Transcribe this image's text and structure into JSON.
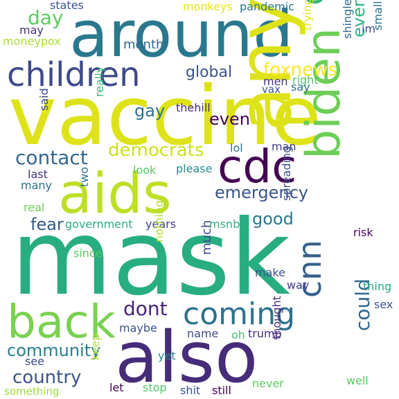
{
  "words": {
    "vaccine": {
      "text": "vaccine",
      "color": "#dde318"
    },
    "mask": {
      "text": "mask",
      "color": "#27ad81"
    },
    "around": {
      "text": "around",
      "color": "#2a788e"
    },
    "anyone": {
      "text": "anyone",
      "color": "#dde318"
    },
    "also": {
      "text": "also",
      "color": "#472c7a"
    },
    "aids": {
      "text": "aids",
      "color": "#bddf26"
    },
    "children": {
      "text": "children",
      "color": "#3e4a89"
    },
    "biden": {
      "text": "biden",
      "color": "#6ece58"
    },
    "back": {
      "text": "back",
      "color": "#7ad151"
    },
    "cdc": {
      "text": "cdc",
      "color": "#440154"
    },
    "come": {
      "text": "come",
      "color": "#35b779"
    },
    "coming": {
      "text": "coming",
      "color": "#2c718e"
    },
    "cnn": {
      "text": "cnn",
      "color": "#35608d"
    },
    "democrats": {
      "text": "democrats",
      "color": "#cde11d"
    },
    "contact": {
      "text": "contact",
      "color": "#31688e"
    },
    "country": {
      "text": "country",
      "color": "#3b528b"
    },
    "community": {
      "text": "community",
      "color": "#277f8e"
    },
    "emergency": {
      "text": "emergency",
      "color": "#3a548c"
    },
    "dont": {
      "text": "dont",
      "color": "#482475"
    },
    "could": {
      "text": "could",
      "color": "#31688e"
    },
    "day": {
      "text": "day",
      "color": "#5ec962"
    },
    "foxnews": {
      "text": "foxnews",
      "color": "#fde725"
    },
    "global": {
      "text": "global",
      "color": "#3b528b"
    },
    "everyone": {
      "text": "everyone",
      "color": "#2fb47c"
    },
    "gay": {
      "text": "gay",
      "color": "#2c718e"
    },
    "even": {
      "text": "even",
      "color": "#440154"
    },
    "fear": {
      "text": "fear",
      "color": "#38598c"
    },
    "good": {
      "text": "good",
      "color": "#2a788e"
    },
    "month": {
      "text": "month",
      "color": "#33638d"
    },
    "may": {
      "text": "may",
      "color": "#472f7d"
    },
    "moneypox": {
      "text": "moneypox",
      "color": "#addc30"
    },
    "states": {
      "text": "states",
      "color": "#3b528b"
    },
    "monkeys": {
      "text": "monkeys",
      "color": "#e5e419"
    },
    "pandemic": {
      "text": "pandemic",
      "color": "#2a788e"
    },
    "im": {
      "text": "im",
      "color": "#3e4a89"
    },
    "shingles": {
      "text": "shingles",
      "color": "#31688e"
    },
    "smallpox": {
      "text": "smallpox",
      "color": "#2d708e"
    },
    "trying": {
      "text": "trying",
      "color": "#e2e418"
    },
    "men": {
      "text": "men",
      "color": "#463480"
    },
    "right": {
      "text": "right",
      "color": "#52c569"
    },
    "vax": {
      "text": "vax",
      "color": "#3b528b"
    },
    "say": {
      "text": "say",
      "color": "#2c718e"
    },
    "thehill": {
      "text": "thehill",
      "color": "#472c7a"
    },
    "said": {
      "text": "said",
      "color": "#3e4a89"
    },
    "really": {
      "text": "really",
      "color": "#35b779"
    },
    "lol": {
      "text": "lol",
      "color": "#2c718e"
    },
    "man": {
      "text": "man",
      "color": "#433e85"
    },
    "last": {
      "text": "last",
      "color": "#46327e"
    },
    "look": {
      "text": "look",
      "color": "#56c667"
    },
    "please": {
      "text": "please",
      "color": "#228c8d"
    },
    "many": {
      "text": "many",
      "color": "#2c718e"
    },
    "two": {
      "text": "two",
      "color": "#2a768e"
    },
    "real": {
      "text": "real",
      "color": "#6ece58"
    },
    "government": {
      "text": "government",
      "color": "#27ad81"
    },
    "years": {
      "text": "years",
      "color": "#414487"
    },
    "msnbc": {
      "text": "msnbc",
      "color": "#2fb47c"
    },
    "spreading": {
      "text": "spreading",
      "color": "#3b528b"
    },
    "risk": {
      "text": "risk",
      "color": "#440154"
    },
    "nothing": {
      "text": "nothing",
      "color": "#b5de2b"
    },
    "since": {
      "text": "since",
      "color": "#5ec962"
    },
    "much": {
      "text": "much",
      "color": "#3e4a89"
    },
    "make": {
      "text": "make",
      "color": "#3b528b"
    },
    "way": {
      "text": "way",
      "color": "#443983"
    },
    "thing": {
      "text": "thing",
      "color": "#22a884"
    },
    "sex": {
      "text": "sex",
      "color": "#3b528b"
    },
    "maybe": {
      "text": "maybe",
      "color": "#3b528b"
    },
    "name": {
      "text": "name",
      "color": "#3e4a89"
    },
    "oh": {
      "text": "oh",
      "color": "#44bf70"
    },
    "trump": {
      "text": "trump",
      "color": "#472c7a"
    },
    "thought": {
      "text": "thought",
      "color": "#472c7a"
    },
    "see": {
      "text": "see",
      "color": "#3e4a89"
    },
    "yet": {
      "text": "yet",
      "color": "#228c8d"
    },
    "keep": {
      "text": "keep",
      "color": "#addc30"
    },
    "let": {
      "text": "let",
      "color": "#440154"
    },
    "stop": {
      "text": "stop",
      "color": "#52c569"
    },
    "never": {
      "text": "never",
      "color": "#5ec962"
    },
    "shit": {
      "text": "shit",
      "color": "#3b528b"
    },
    "still": {
      "text": "still",
      "color": "#440154"
    },
    "well": {
      "text": "well",
      "color": "#5ec962"
    },
    "something": {
      "text": "something",
      "color": "#a0da39"
    }
  }
}
